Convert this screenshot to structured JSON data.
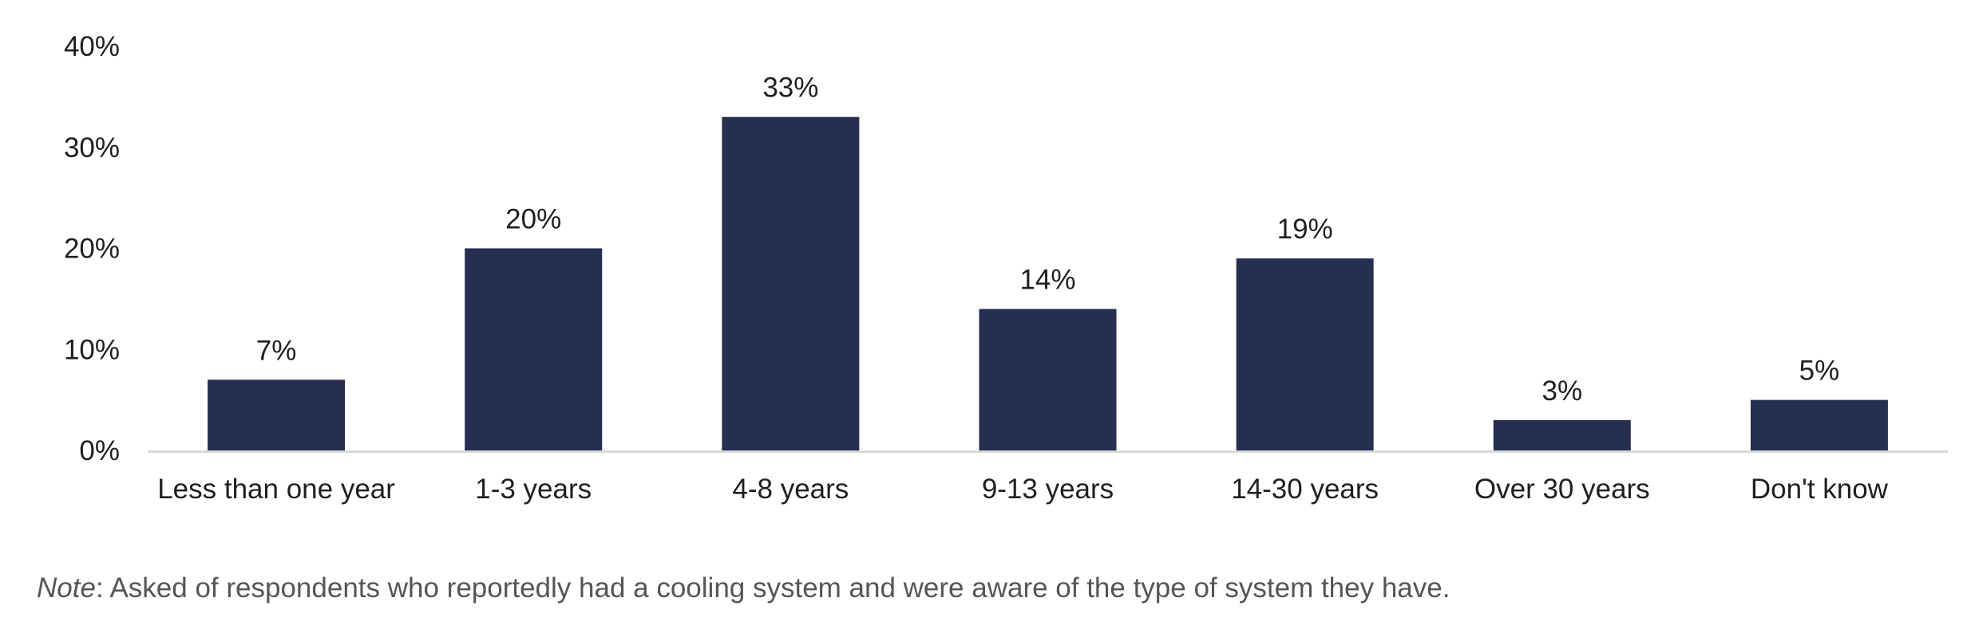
{
  "chart_data": {
    "type": "bar",
    "categories": [
      "Less than one year",
      "1-3 years",
      "4-8 years",
      "9-13 years",
      "14-30 years",
      "Over 30 years",
      "Don't know"
    ],
    "values": [
      7,
      20,
      33,
      14,
      19,
      3,
      5
    ],
    "value_labels": [
      "7%",
      "20%",
      "33%",
      "14%",
      "19%",
      "3%",
      "5%"
    ],
    "ylim": [
      0,
      40
    ],
    "yticks": [
      0,
      10,
      20,
      30,
      40
    ],
    "ytick_labels": [
      "0%",
      "10%",
      "20%",
      "30%",
      "40%"
    ],
    "grid": false,
    "bar_color": "#262f52",
    "axis_color": "#d9d9d9"
  },
  "note": {
    "label": "Note",
    "text": ": Asked of respondents who reportedly had a cooling system and were aware of the type of system they have."
  }
}
